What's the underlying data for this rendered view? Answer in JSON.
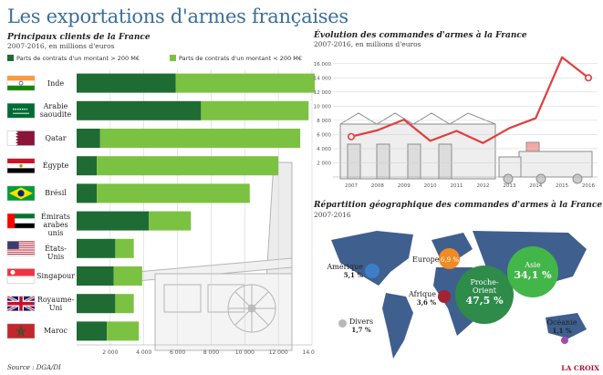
{
  "title": "Les exportations d'armes françaises",
  "source": "Source : DGA/DI",
  "logo": "LA CROIX",
  "colors": {
    "dark": "#1f6b34",
    "light": "#7cc242",
    "line": "#e23d3d",
    "title": "#3a6f9a"
  },
  "chart_data": [
    {
      "type": "bar",
      "title": "Principaux clients de la France",
      "subtitle": "2007-2016, en millions d'euros",
      "legend": [
        "Parts de contrats d'un montant > 200 M€",
        "Parts de contrats d'un montant < 200 M€"
      ],
      "categories": [
        "Inde",
        "Arabie saoudite",
        "Qatar",
        "Égypte",
        "Brésil",
        "Émirats arabes unis",
        "États-Unis",
        "Singapour",
        "Royaume-Uni",
        "Maroc"
      ],
      "label_lines": [
        [
          "Inde"
        ],
        [
          "Arabie",
          "saoudite"
        ],
        [
          "Qatar"
        ],
        [
          "Égypte"
        ],
        [
          "Brésil"
        ],
        [
          "Émirats",
          "arabes unis"
        ],
        [
          "États-Unis"
        ],
        [
          "Singapour"
        ],
        [
          "Royaume-",
          "Uni"
        ],
        [
          "Maroc"
        ]
      ],
      "flags": [
        "india",
        "saudi",
        "qatar",
        "egypt",
        "brazil",
        "uae",
        "usa",
        "singapore",
        "uk",
        "morocco"
      ],
      "series": [
        {
          "name": "Parts de contrats d'un montant > 200 M€",
          "values": [
            5900,
            7400,
            1400,
            1200,
            1200,
            4300,
            2300,
            2200,
            2300,
            1800
          ]
        },
        {
          "name": "Parts de contrats d'un montant < 200 M€",
          "values": [
            11900,
            6400,
            11900,
            10800,
            9100,
            2500,
            1100,
            1700,
            1100,
            1900
          ]
        }
      ],
      "xticks": [
        2000,
        4000,
        6000,
        8000,
        10000,
        12000,
        14000
      ],
      "xtick_labels": [
        "2 000",
        "4 000",
        "6 000",
        "8 000",
        "10 000",
        "12 000",
        "14 000"
      ],
      "xlim": [
        0,
        14000
      ]
    },
    {
      "type": "line",
      "title": "Évolution des commandes d'armes à la France",
      "subtitle": "2007-2016, en millions d'euros",
      "x": [
        2007,
        2008,
        2009,
        2010,
        2011,
        2012,
        2013,
        2014,
        2015,
        2016
      ],
      "values": [
        5700,
        6600,
        8100,
        5100,
        6500,
        4800,
        6900,
        8300,
        16900,
        14000
      ],
      "yticks": [
        2000,
        4000,
        6000,
        8000,
        10000,
        12000,
        14000,
        16000
      ],
      "ytick_labels": [
        "2 000",
        "4 000",
        "6 000",
        "8 000",
        "10 000",
        "12 000",
        "14 000",
        "16 000"
      ],
      "ylim": [
        0,
        17000
      ]
    },
    {
      "type": "bubble-map",
      "title": "Répartition géographique des commandes d'armes à la France",
      "subtitle": "2007-2016",
      "regions": [
        {
          "name": "Amérique",
          "value": "5,1 %",
          "color": "#3c7fc6"
        },
        {
          "name": "Europe",
          "value": "6,9 %",
          "color": "#f08a24"
        },
        {
          "name": "Afrique",
          "value": "3,6 %",
          "color": "#a32333"
        },
        {
          "name": "Proche-Orient",
          "value": "47,5 %",
          "color": "#2e8b4a"
        },
        {
          "name": "Asie",
          "value": "34,1 %",
          "color": "#43b649"
        },
        {
          "name": "Divers",
          "value": "1,7 %",
          "color": "#b8b8b8"
        },
        {
          "name": "Océanie",
          "value": "1,1 %",
          "color": "#a44aa6"
        }
      ]
    }
  ]
}
